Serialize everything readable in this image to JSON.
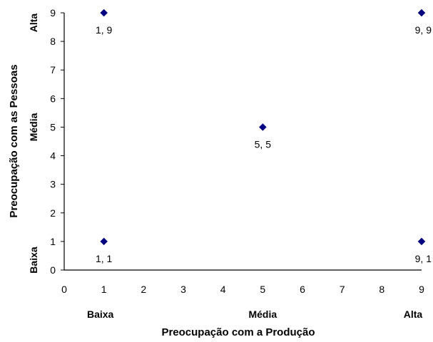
{
  "chart_data": {
    "type": "scatter",
    "xlabel": "Preocupação com a Produção",
    "ylabel": "Preocupação com as Pessoas",
    "xlim": [
      0,
      9
    ],
    "ylim": [
      0,
      9
    ],
    "x_ticks": [
      "0",
      "1",
      "2",
      "3",
      "4",
      "5",
      "6",
      "7",
      "8",
      "9"
    ],
    "y_ticks": [
      "0",
      "1",
      "2",
      "3",
      "4",
      "5",
      "6",
      "7",
      "8",
      "9"
    ],
    "x_category_labels": [
      {
        "x": 1,
        "label": "Baixa"
      },
      {
        "x": 5,
        "label": "Média"
      },
      {
        "x": 9,
        "label": "Alta"
      }
    ],
    "y_category_labels": [
      {
        "y": 0,
        "label": "Baixa"
      },
      {
        "y": 5,
        "label": "Média"
      },
      {
        "y": 9,
        "label": "Alta"
      }
    ],
    "grid": false,
    "marker_color": "#000080",
    "points": [
      {
        "x": 1,
        "y": 9,
        "label": "1, 9"
      },
      {
        "x": 9,
        "y": 9,
        "label": "9, 9"
      },
      {
        "x": 5,
        "y": 5,
        "label": "5, 5"
      },
      {
        "x": 1,
        "y": 1,
        "label": "1, 1"
      },
      {
        "x": 9,
        "y": 1,
        "label": "9, 1"
      }
    ]
  }
}
